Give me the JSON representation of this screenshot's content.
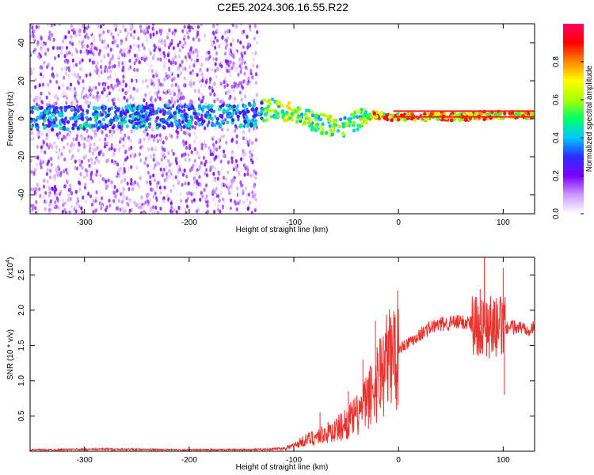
{
  "title": "C2E5.2024.306.16.55.R22",
  "chart_data": [
    {
      "type": "heatmap",
      "xlabel": "Height of straight line (km)",
      "ylabel": "Frequency (Hz)",
      "xlim": [
        -352,
        130
      ],
      "ylim": [
        -50,
        50
      ],
      "xticks": [
        -300,
        -200,
        -100,
        0,
        100
      ],
      "xtick_labels": [
        "-300",
        "-200",
        "-100",
        "0",
        "100"
      ],
      "yticks": [
        -40,
        -20,
        0,
        20,
        40
      ],
      "ytick_labels": [
        "-40",
        "-20",
        "0",
        "20",
        "40"
      ],
      "colorbar": {
        "label": "Normalized spectral amplitude",
        "range": [
          0,
          1
        ],
        "ticks": [
          0.0,
          0.2,
          0.4,
          0.6,
          0.8
        ],
        "tick_labels": [
          "0.0",
          "0.2",
          "0.4",
          "0.6",
          "0.8"
        ],
        "colors": [
          "#ffffff",
          "#cc99ff",
          "#7a00ff",
          "#2c2cff",
          "#00c8ff",
          "#00ff66",
          "#aaff00",
          "#ffff00",
          "#ff8800",
          "#ff0000",
          "#ff0066"
        ]
      },
      "ridge": [
        {
          "x": -352,
          "freq": 0
        },
        {
          "x": -140,
          "freq": 2
        },
        {
          "x": -120,
          "freq": 5
        },
        {
          "x": -100,
          "freq": 3
        },
        {
          "x": -80,
          "freq": -2
        },
        {
          "x": -55,
          "freq": -5
        },
        {
          "x": -40,
          "freq": -1
        },
        {
          "x": -25,
          "freq": 2
        },
        {
          "x": 0,
          "freq": 1
        },
        {
          "x": 60,
          "freq": 1
        },
        {
          "x": 90,
          "freq": 2
        },
        {
          "x": 130,
          "freq": 2
        }
      ],
      "band_lines": [
        {
          "x0": -5,
          "x1": 130,
          "freq": 4
        },
        {
          "x0": -5,
          "x1": 130,
          "freq": 1
        }
      ]
    },
    {
      "type": "line",
      "xlabel": "Height of straight line (km)",
      "ylabel": "SNR (10 * v/v)",
      "scale_label": "(x10",
      "scale_exponent": "4",
      "scale_suffix": ")",
      "xlim": [
        -352,
        130
      ],
      "ylim": [
        0,
        27500
      ],
      "xticks": [
        -300,
        -200,
        -100,
        0,
        100
      ],
      "xtick_labels": [
        "-300",
        "-200",
        "-100",
        "0",
        "100"
      ],
      "yticks": [
        5000,
        10000,
        15000,
        20000,
        25000
      ],
      "ytick_labels": [
        "0.5",
        "1.0",
        "1.5",
        "2.0",
        "2.5"
      ],
      "color": "#e8332f",
      "series": [
        {
          "x": -352,
          "y": 200
        },
        {
          "x": -280,
          "y": 300
        },
        {
          "x": -200,
          "y": 200
        },
        {
          "x": -130,
          "y": 250
        },
        {
          "x": -110,
          "y": 400
        },
        {
          "x": -100,
          "y": 800
        },
        {
          "x": -90,
          "y": 1500
        },
        {
          "x": -80,
          "y": 2000
        },
        {
          "x": -70,
          "y": 2500
        },
        {
          "x": -60,
          "y": 3000
        },
        {
          "x": -50,
          "y": 4000
        },
        {
          "x": -40,
          "y": 5000
        },
        {
          "x": -30,
          "y": 7000
        },
        {
          "x": -20,
          "y": 10000
        },
        {
          "x": -10,
          "y": 13000
        },
        {
          "x": 0,
          "y": 14500
        },
        {
          "x": 10,
          "y": 15500
        },
        {
          "x": 20,
          "y": 16500
        },
        {
          "x": 30,
          "y": 17500
        },
        {
          "x": 40,
          "y": 18000
        },
        {
          "x": 50,
          "y": 18200
        },
        {
          "x": 60,
          "y": 18300
        },
        {
          "x": 70,
          "y": 18200
        },
        {
          "x": 80,
          "y": 17800
        },
        {
          "x": 90,
          "y": 17500
        },
        {
          "x": 100,
          "y": 17500
        },
        {
          "x": 110,
          "y": 17600
        },
        {
          "x": 120,
          "y": 17500
        },
        {
          "x": 130,
          "y": 17400
        }
      ],
      "spikes": [
        {
          "x": -75,
          "y": 5500
        },
        {
          "x": -48,
          "y": 8500
        },
        {
          "x": -34,
          "y": 13000
        },
        {
          "x": -22,
          "y": 18500
        },
        {
          "x": -18,
          "y": 16000
        },
        {
          "x": 78,
          "y": 23000
        },
        {
          "x": 82,
          "y": 27500
        },
        {
          "x": 88,
          "y": 22000
        },
        {
          "x": 100,
          "y": 26000
        },
        {
          "x": 101,
          "y": 8000
        }
      ]
    }
  ]
}
